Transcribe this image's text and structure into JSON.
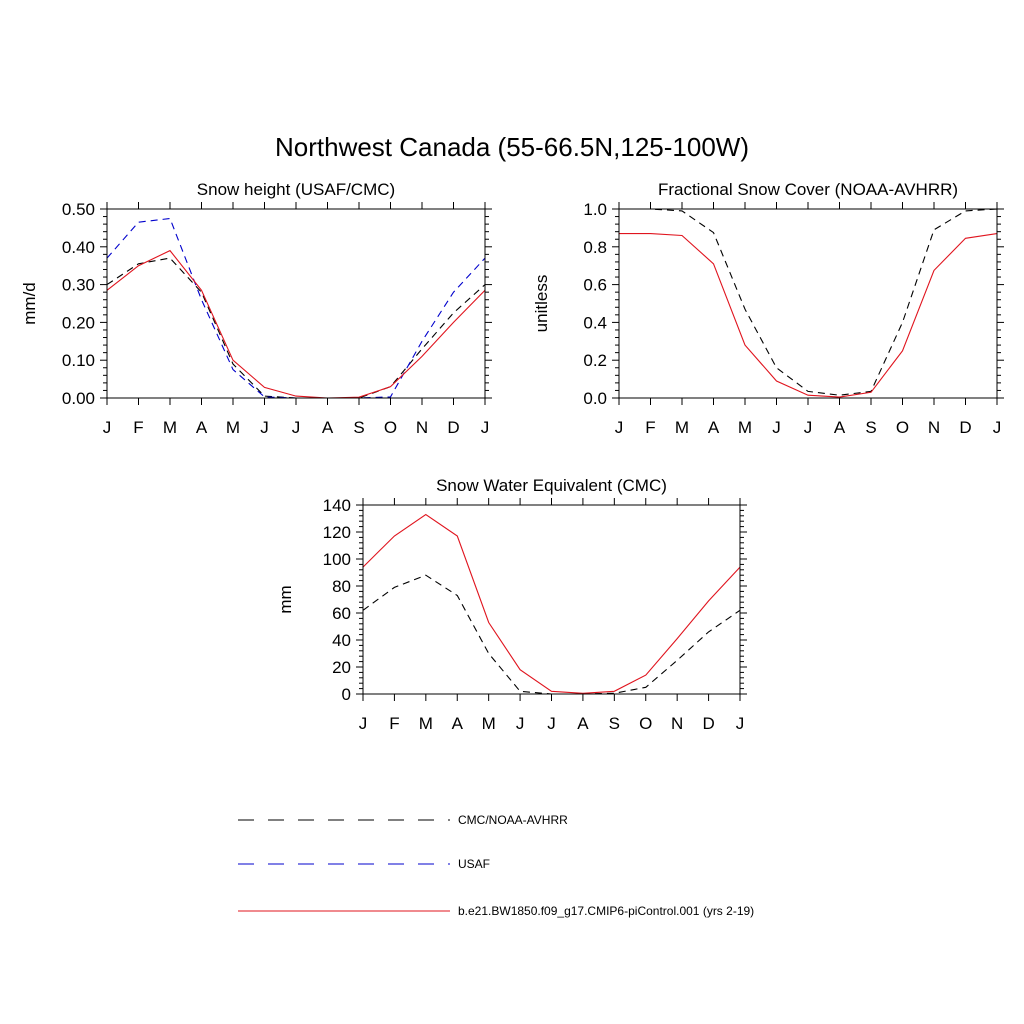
{
  "title": "Northwest Canada (55-66.5N,125-100W)",
  "series_names": [
    "CMC/NOAA-AVHRR",
    "USAF",
    "b.e21.BW1850.f09_g17.CMIP6-piControl.001 (yrs 2-19)"
  ],
  "colors": {
    "obs": "#000000",
    "usaf": "#0000cc",
    "model": "#e0141e"
  },
  "chart_data": [
    {
      "type": "line",
      "title": "Snow height (USAF/CMC)",
      "ylabel": "mm/d",
      "xlabel": "",
      "categories": [
        "J",
        "F",
        "M",
        "A",
        "M",
        "J",
        "J",
        "A",
        "S",
        "O",
        "N",
        "D",
        "J"
      ],
      "ylim": [
        0,
        0.5
      ],
      "yticks": [
        "0.00",
        "0.10",
        "0.20",
        "0.30",
        "0.40",
        "0.50"
      ],
      "series": [
        {
          "name": "CMC/NOAA-AVHRR",
          "style": "dashed",
          "color": "#000000",
          "values": [
            0.3,
            0.355,
            0.37,
            0.28,
            0.09,
            0.005,
            0.0,
            0.0,
            0.0,
            0.03,
            0.13,
            0.225,
            0.3
          ]
        },
        {
          "name": "USAF",
          "style": "dashed",
          "color": "#0000cc",
          "values": [
            0.37,
            0.465,
            0.475,
            0.26,
            0.075,
            0.003,
            0.0,
            0.0,
            0.0,
            0.003,
            0.15,
            0.28,
            0.37
          ]
        },
        {
          "name": "b.e21.BW1850.f09_g17.CMIP6-piControl.001 (yrs 2-19)",
          "style": "solid",
          "color": "#e0141e",
          "values": [
            0.285,
            0.35,
            0.39,
            0.285,
            0.1,
            0.028,
            0.005,
            0.0,
            0.002,
            0.03,
            0.11,
            0.2,
            0.285
          ]
        }
      ]
    },
    {
      "type": "line",
      "title": "Fractional Snow Cover (NOAA-AVHRR)",
      "ylabel": "unitless",
      "xlabel": "",
      "categories": [
        "J",
        "F",
        "M",
        "A",
        "M",
        "J",
        "J",
        "A",
        "S",
        "O",
        "N",
        "D",
        "J"
      ],
      "ylim": [
        0,
        1.0
      ],
      "yticks": [
        "0.0",
        "0.2",
        "0.4",
        "0.6",
        "0.8",
        "1.0"
      ],
      "series": [
        {
          "name": "CMC/NOAA-AVHRR",
          "style": "dashed",
          "color": "#000000",
          "values": [
            1.0,
            1.0,
            0.99,
            0.875,
            0.47,
            0.16,
            0.035,
            0.015,
            0.035,
            0.4,
            0.89,
            0.99,
            1.0
          ]
        },
        {
          "name": "b.e21.BW1850.f09_g17.CMIP6-piControl.001 (yrs 2-19)",
          "style": "solid",
          "color": "#e0141e",
          "values": [
            0.87,
            0.87,
            0.86,
            0.71,
            0.28,
            0.09,
            0.015,
            0.005,
            0.03,
            0.25,
            0.675,
            0.845,
            0.87
          ]
        }
      ]
    },
    {
      "type": "line",
      "title": "Snow Water Equivalent (CMC)",
      "ylabel": "mm",
      "xlabel": "",
      "categories": [
        "J",
        "F",
        "M",
        "A",
        "M",
        "J",
        "J",
        "A",
        "S",
        "O",
        "N",
        "D",
        "J"
      ],
      "ylim": [
        0,
        140
      ],
      "yticks": [
        "0",
        "20",
        "40",
        "60",
        "80",
        "100",
        "120",
        "140"
      ],
      "series": [
        {
          "name": "CMC/NOAA-AVHRR",
          "style": "dashed",
          "color": "#000000",
          "values": [
            62,
            79,
            88,
            73,
            30,
            2,
            0,
            0,
            0.5,
            5,
            25,
            46,
            62
          ]
        },
        {
          "name": "b.e21.BW1850.f09_g17.CMIP6-piControl.001 (yrs 2-19)",
          "style": "solid",
          "color": "#e0141e",
          "values": [
            94,
            117,
            133,
            117,
            53,
            18,
            2,
            0.5,
            2,
            14,
            41,
            69,
            94
          ]
        }
      ]
    }
  ]
}
